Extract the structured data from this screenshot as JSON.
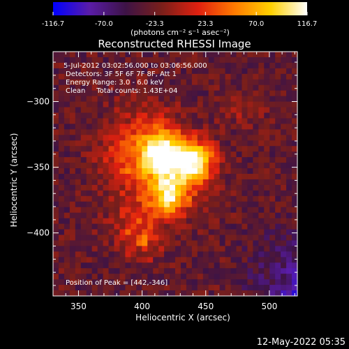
{
  "chart_data": {
    "type": "heatmap",
    "title": "Reconstructed RHESSI Image",
    "xlabel": "Heliocentric X (arcsec)",
    "ylabel": "Heliocentric Y (arcsec)",
    "xlim": [
      330,
      522
    ],
    "ylim": [
      -448,
      -262
    ],
    "x_ticks": [
      350,
      400,
      450,
      500
    ],
    "y_ticks": [
      -300,
      -350,
      -400
    ],
    "colorbar": {
      "ticks": [
        "-116.7",
        "-70.0",
        "-23.3",
        "23.3",
        "70.0",
        "116.7"
      ],
      "min": -116.7,
      "max": 116.7,
      "unit_label": "(photons cm⁻² s⁻¹ asec⁻²)",
      "colors": [
        "#0000ff",
        "#5a1ca8",
        "#3d1346",
        "#7a1f1a",
        "#e02010",
        "#ff7a00",
        "#ffd000",
        "#ffffff"
      ]
    },
    "annotations": [
      "5-Jul-2012 03:02:56.000 to 03:06:56.000",
      "Detectors: 3F 5F 6F 7F 8F, Att 1",
      "Energy Range: 3.0 - 6.0 keV",
      "Clean     Total counts: 1.43E+04"
    ],
    "peak_label": "Position of Peak = [442,-346]",
    "peak": [
      442,
      -346
    ],
    "sources": [
      {
        "x": 442,
        "y": -346,
        "amp": 116.7,
        "sigma": 10
      },
      {
        "x": 417,
        "y": -340,
        "amp": 110,
        "sigma": 11
      },
      {
        "x": 422,
        "y": -372,
        "amp": 95,
        "sigma": 10
      },
      {
        "x": 420,
        "y": -352,
        "amp": 70,
        "sigma": 20
      },
      {
        "x": 400,
        "y": -406,
        "amp": 80,
        "sigma": 4
      },
      {
        "x": 385,
        "y": -345,
        "amp": 40,
        "sigma": 14
      },
      {
        "x": 400,
        "y": -320,
        "amp": 30,
        "sigma": 18
      },
      {
        "x": 480,
        "y": -305,
        "amp": 22,
        "sigma": 10
      },
      {
        "x": 395,
        "y": -390,
        "amp": 35,
        "sigma": 16
      }
    ],
    "timestamp": "12-May-2022 05:35"
  }
}
